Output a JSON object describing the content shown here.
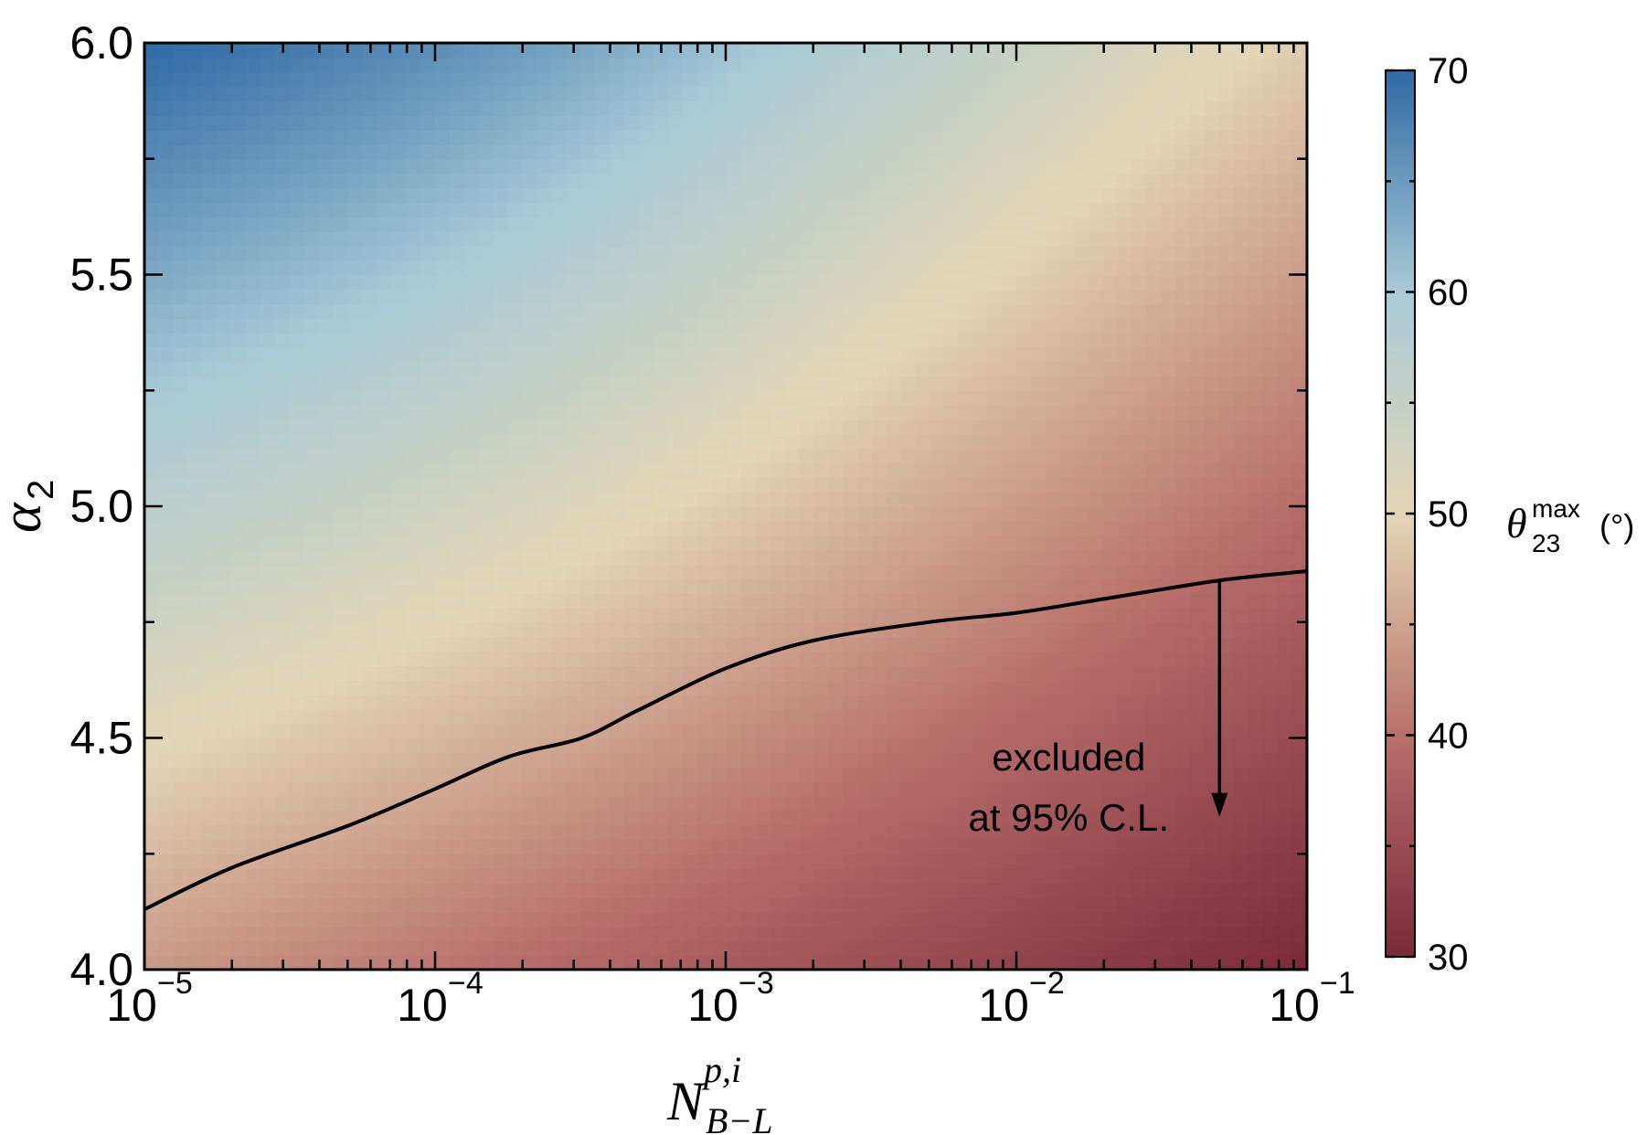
{
  "chart_data": {
    "type": "heatmap",
    "title": "",
    "xlabel": {
      "symbol": "N",
      "superscript": "p,i",
      "subscript": "B−L"
    },
    "ylabel": {
      "symbol": "α",
      "subscript": "2"
    },
    "xscale": "log",
    "xlim": [
      1e-05,
      0.1
    ],
    "ylim": [
      4.0,
      6.0
    ],
    "x_ticks": [
      {
        "base": "10",
        "exp": "−5"
      },
      {
        "base": "10",
        "exp": "−4"
      },
      {
        "base": "10",
        "exp": "−3"
      },
      {
        "base": "10",
        "exp": "−2"
      },
      {
        "base": "10",
        "exp": "−1"
      }
    ],
    "x_tick_values": [
      1e-05,
      0.0001,
      0.001,
      0.01,
      0.1
    ],
    "y_ticks": [
      "4.0",
      "4.5",
      "5.0",
      "5.5",
      "6.0"
    ],
    "y_tick_values": [
      4.0,
      4.5,
      5.0,
      5.5,
      6.0
    ],
    "colorbar": {
      "label_symbol": "θ",
      "label_superscript": "max",
      "label_subscript": "23",
      "label_unit": "(°)",
      "range": [
        30,
        70
      ],
      "ticks": [
        "30",
        "40",
        "50",
        "60",
        "70"
      ],
      "tick_values": [
        30,
        40,
        50,
        60,
        70
      ],
      "colors": {
        "low": "#7a2a3a",
        "mid_low": "#b8706b",
        "mid": "#e3d6b6",
        "mid_high": "#a8cad6",
        "high": "#2f6aa5"
      }
    },
    "field_corners_deg": {
      "top_left": 70,
      "top_right": 49,
      "bottom_left": 44,
      "bottom_right": 30
    },
    "contour": {
      "label": "exclusion boundary",
      "x": [
        1e-05,
        2e-05,
        5e-05,
        0.0001,
        0.00018,
        0.00032,
        0.0005,
        0.001,
        0.002,
        0.005,
        0.01,
        0.02,
        0.05,
        0.1
      ],
      "y": [
        4.13,
        4.22,
        4.31,
        4.39,
        4.46,
        4.5,
        4.56,
        4.65,
        4.71,
        4.75,
        4.77,
        4.8,
        4.84,
        4.86
      ]
    },
    "annotation": {
      "lines": [
        "excluded",
        "at 95% C.L."
      ],
      "arrow_x": 0.05,
      "arrow_from_y": 4.84,
      "arrow_to_y": 4.33
    }
  }
}
